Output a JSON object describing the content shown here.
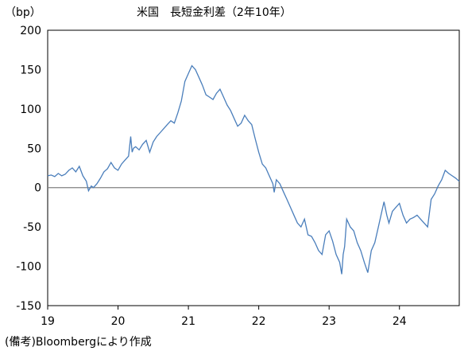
{
  "chart_data": {
    "type": "line",
    "title": "米国　長短金利差（2年10年）",
    "unit_label": "（bp）",
    "source_note": "(備考)Bloombergにより作成",
    "x_ticks": [
      "19",
      "20",
      "21",
      "22",
      "23",
      "24"
    ],
    "y_ticks": [
      "200",
      "150",
      "100",
      "50",
      "0",
      "-50",
      "-100",
      "-150"
    ],
    "xlim": [
      2019.0,
      2024.85
    ],
    "ylim": [
      -150,
      200
    ],
    "grid": false,
    "legend": "none",
    "line_color": "#4a7ebb",
    "zero_line_color": "#808080",
    "series": [
      {
        "x": [
          2019.0,
          2019.05,
          2019.1,
          2019.15,
          2019.2,
          2019.25,
          2019.3,
          2019.35,
          2019.4,
          2019.45,
          2019.5,
          2019.55,
          2019.58,
          2019.62,
          2019.65,
          2019.7,
          2019.75,
          2019.8,
          2019.85,
          2019.9,
          2019.95,
          2020.0,
          2020.05,
          2020.1,
          2020.15,
          2020.18,
          2020.2,
          2020.22,
          2020.25,
          2020.3,
          2020.35,
          2020.4,
          2020.45,
          2020.5,
          2020.55,
          2020.6,
          2020.65,
          2020.7,
          2020.75,
          2020.8,
          2020.85,
          2020.9,
          2020.95,
          2021.0,
          2021.05,
          2021.1,
          2021.15,
          2021.2,
          2021.25,
          2021.3,
          2021.35,
          2021.4,
          2021.45,
          2021.5,
          2021.55,
          2021.6,
          2021.65,
          2021.7,
          2021.75,
          2021.8,
          2021.85,
          2021.9,
          2021.95,
          2022.0,
          2022.05,
          2022.1,
          2022.15,
          2022.2,
          2022.22,
          2022.25,
          2022.3,
          2022.35,
          2022.4,
          2022.45,
          2022.5,
          2022.55,
          2022.6,
          2022.65,
          2022.7,
          2022.75,
          2022.8,
          2022.85,
          2022.9,
          2022.95,
          2023.0,
          2023.05,
          2023.1,
          2023.15,
          2023.18,
          2023.2,
          2023.22,
          2023.25,
          2023.3,
          2023.35,
          2023.4,
          2023.45,
          2023.5,
          2023.55,
          2023.6,
          2023.65,
          2023.7,
          2023.75,
          2023.78,
          2023.82,
          2023.85,
          2023.9,
          2023.95,
          2024.0,
          2024.05,
          2024.1,
          2024.15,
          2024.2,
          2024.25,
          2024.3,
          2024.35,
          2024.4,
          2024.45,
          2024.5,
          2024.55,
          2024.6,
          2024.65,
          2024.7,
          2024.75,
          2024.8,
          2024.85
        ],
        "values": [
          15,
          16,
          14,
          18,
          15,
          17,
          22,
          25,
          20,
          27,
          15,
          8,
          -4,
          2,
          0,
          5,
          12,
          20,
          24,
          32,
          25,
          22,
          30,
          35,
          40,
          65,
          45,
          50,
          52,
          48,
          55,
          60,
          45,
          58,
          65,
          70,
          75,
          80,
          85,
          82,
          95,
          110,
          135,
          145,
          155,
          150,
          140,
          130,
          118,
          115,
          112,
          120,
          125,
          115,
          105,
          98,
          88,
          78,
          82,
          92,
          85,
          80,
          62,
          45,
          30,
          25,
          15,
          5,
          -6,
          10,
          5,
          -5,
          -15,
          -25,
          -35,
          -45,
          -50,
          -40,
          -60,
          -62,
          -70,
          -80,
          -85,
          -60,
          -55,
          -68,
          -85,
          -95,
          -110,
          -85,
          -75,
          -40,
          -50,
          -55,
          -70,
          -80,
          -95,
          -108,
          -80,
          -70,
          -50,
          -30,
          -18,
          -35,
          -45,
          -30,
          -25,
          -20,
          -35,
          -45,
          -40,
          -38,
          -35,
          -40,
          -45,
          -50,
          -15,
          -8,
          2,
          10,
          22,
          18,
          15,
          12,
          8
        ]
      }
    ]
  }
}
